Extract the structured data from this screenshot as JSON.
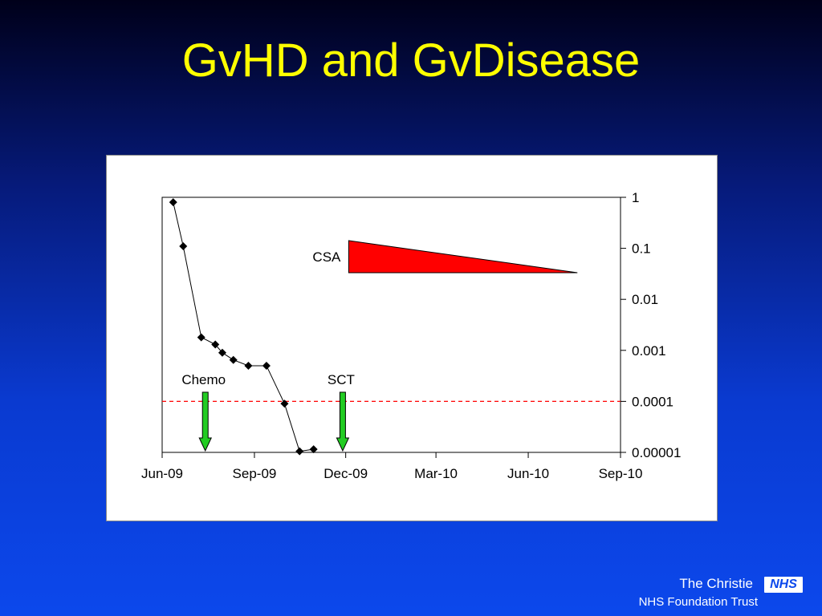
{
  "slide": {
    "title": "GvHD and GvDisease"
  },
  "footer": {
    "line1": "The Christie",
    "line2": "NHS Foundation Trust",
    "logo_text": "NHS"
  },
  "colors": {
    "title": "#ffff00",
    "csa_triangle": "#ff0000",
    "arrow": "#22cc22",
    "threshold_line": "#ff0000",
    "footer_text": "#ffffff"
  },
  "chart_data": {
    "type": "line",
    "title": "",
    "xlabel": "",
    "ylabel": "",
    "y_scale": "log",
    "y_axis_side": "right",
    "ylim": [
      1e-05,
      1
    ],
    "y_ticks": [
      1,
      0.1,
      0.01,
      0.001,
      0.0001,
      1e-05
    ],
    "y_tick_labels": [
      "1",
      "0.1",
      "0.01",
      "0.001",
      "0.0001",
      "0.00001"
    ],
    "xlim": [
      "2009-06-01",
      "2010-09-01"
    ],
    "x_ticks": [
      "2009-06-01",
      "2009-09-01",
      "2009-12-01",
      "2010-03-01",
      "2010-06-01",
      "2010-09-01"
    ],
    "x_tick_labels": [
      "Jun-09",
      "Sep-09",
      "Dec-09",
      "Mar-10",
      "Jun-10",
      "Sep-10"
    ],
    "grid": false,
    "series": [
      {
        "x": [
          "2009-06-12",
          "2009-06-22",
          "2009-07-10",
          "2009-07-24",
          "2009-07-31",
          "2009-08-11",
          "2009-08-26",
          "2009-09-13",
          "2009-10-01",
          "2009-10-16",
          "2009-10-30"
        ],
        "values": [
          0.8,
          0.11,
          0.0018,
          0.0013,
          0.0009,
          0.00065,
          0.0005,
          0.0005,
          9e-05,
          1.05e-05,
          1.15e-05
        ]
      }
    ],
    "threshold": {
      "value": 0.0001,
      "style": "dashed"
    },
    "annotations": [
      {
        "label": "Chemo",
        "type": "arrow",
        "x": "2009-07-14"
      },
      {
        "label": "SCT",
        "type": "arrow",
        "x": "2009-11-28"
      },
      {
        "label": "CSA",
        "type": "tapering-wedge",
        "x_start": "2009-12-04",
        "x_end": "2010-07-20"
      }
    ]
  }
}
